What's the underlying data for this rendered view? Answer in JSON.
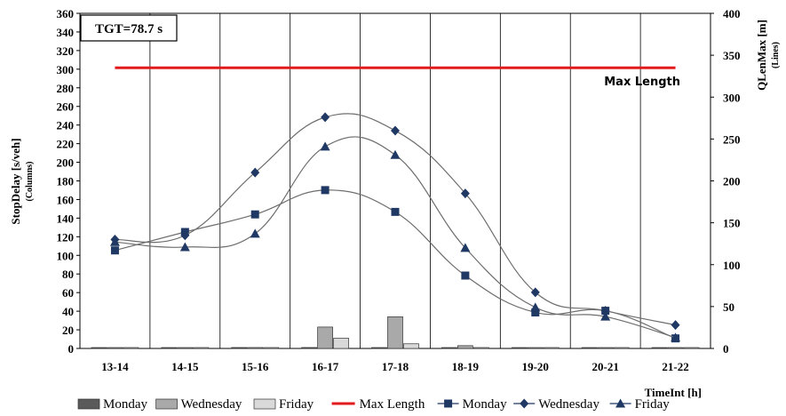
{
  "chart_data": {
    "type": "bar+line",
    "categories": [
      "13-14",
      "14-15",
      "15-16",
      "16-17",
      "17-18",
      "18-19",
      "19-20",
      "20-21",
      "21-22"
    ],
    "y_left": {
      "label": "StopDelay [s/veh]",
      "sublabel": "(Columns)",
      "min": 0,
      "max": 360,
      "step": 20
    },
    "y_right": {
      "label": "QLenMax [m]",
      "sublabel": "(Lines)",
      "min": 0,
      "max": 400,
      "step": 50
    },
    "x_label": "TimeInt [h]",
    "annotation": "TGT=78.7 s",
    "bar_series": [
      {
        "name": "Monday",
        "color": "#5a5a5a",
        "values": [
          0,
          0,
          1,
          1,
          0,
          0,
          0,
          0,
          0
        ]
      },
      {
        "name": "Wednesday",
        "color": "#a9a9a9",
        "values": [
          0,
          0,
          1,
          23,
          34,
          3,
          0,
          0,
          0
        ]
      },
      {
        "name": "Friday",
        "color": "#d9d9d9",
        "values": [
          0,
          0,
          0,
          11,
          5,
          0,
          0,
          0,
          0
        ]
      }
    ],
    "max_length": {
      "name": "Max Length",
      "label": "Max Length",
      "value": 335,
      "color": "#e31a1c"
    },
    "line_series": [
      {
        "name": "Monday",
        "marker": "square",
        "color": "#1f3864",
        "values": [
          117,
          139,
          160,
          189,
          163,
          87,
          43,
          45,
          12
        ]
      },
      {
        "name": "Wednesday",
        "marker": "diamond",
        "color": "#1f3864",
        "values": [
          130,
          135,
          210,
          276,
          260,
          185,
          67,
          45,
          28
        ]
      },
      {
        "name": "Friday",
        "marker": "triangle",
        "color": "#1f3864",
        "values": [
          127,
          121,
          137,
          241,
          231,
          120,
          49,
          38,
          13
        ]
      }
    ],
    "grid": {
      "horizontal": false,
      "vertical": true
    }
  }
}
